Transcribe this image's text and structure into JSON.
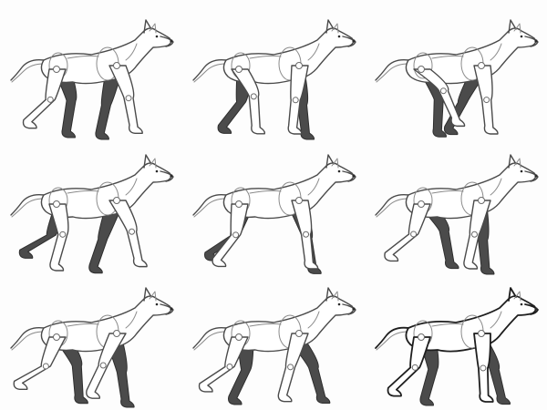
{
  "frames": [
    {
      "far_back": 0.3,
      "far_front": -0.2,
      "near_back": -0.2,
      "near_front": 0.35,
      "bold": false
    },
    {
      "far_back": -0.1,
      "far_front": 0.2,
      "near_back": 0.5,
      "near_front": -0.1,
      "bold": false
    },
    {
      "far_back": 0.4,
      "far_front": -0.45,
      "near_back": 0.8,
      "near_front": 0.15,
      "bold": false
    },
    {
      "far_back": -0.35,
      "far_front": -0.3,
      "near_back": 0.2,
      "near_front": 0.45,
      "bold": false
    },
    {
      "far_back": -0.3,
      "far_front": 0.35,
      "near_back": -0.1,
      "near_front": 0.2,
      "bold": false
    },
    {
      "far_back": 0.6,
      "far_front": 0.15,
      "near_back": -0.25,
      "near_front": -0.2,
      "bold": false
    },
    {
      "far_back": 0.5,
      "far_front": 0.25,
      "near_back": -0.35,
      "near_front": -0.4,
      "bold": false
    },
    {
      "far_back": 0.05,
      "far_front": 0.55,
      "near_back": -0.3,
      "near_front": -0.25,
      "bold": false
    },
    {
      "far_back": 0.2,
      "far_front": 0.5,
      "near_back": -0.2,
      "near_front": 0.05,
      "bold": true
    }
  ]
}
